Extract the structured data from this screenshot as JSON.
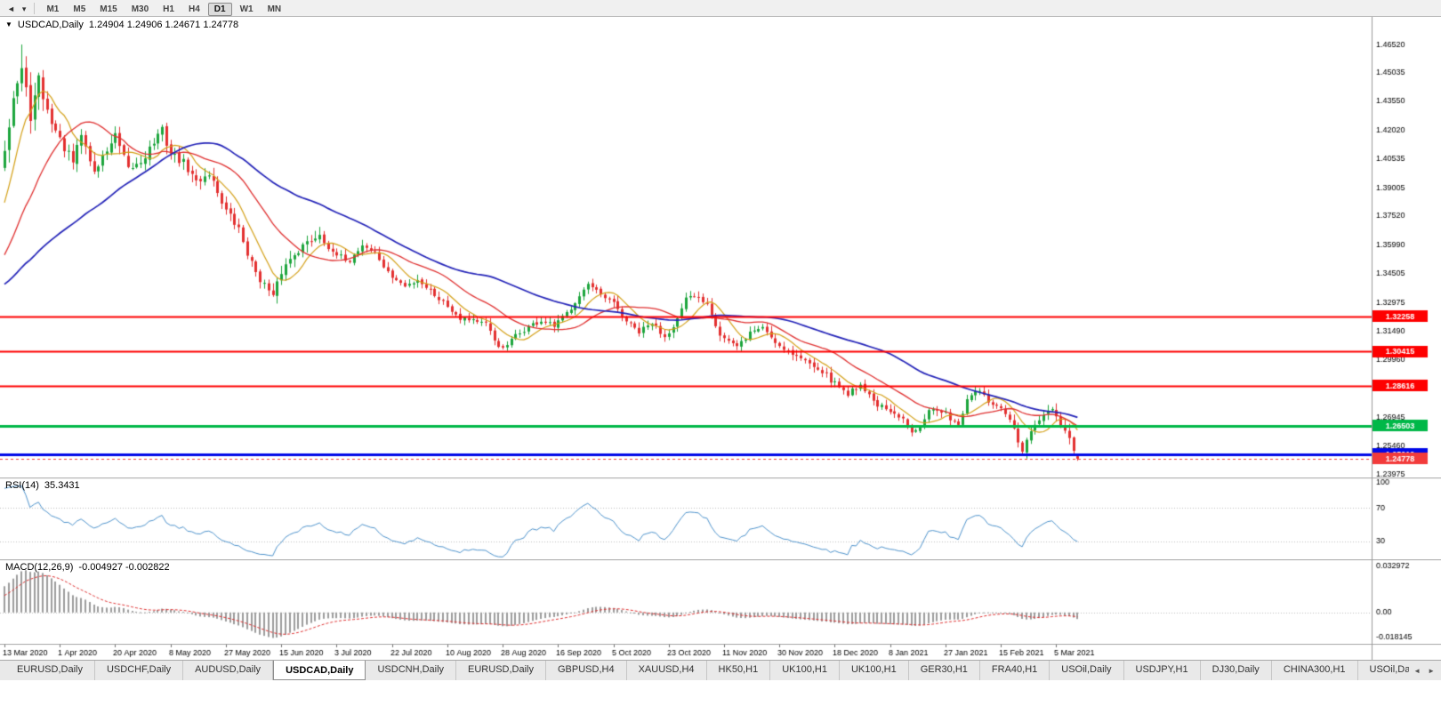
{
  "toolbar": {
    "left_icons": [
      {
        "name": "collapse-left-icon",
        "glyph": "◄"
      },
      {
        "name": "dropdown-caret-icon",
        "glyph": "▾"
      }
    ],
    "periods": [
      {
        "label": "M1"
      },
      {
        "label": "M5"
      },
      {
        "label": "M15"
      },
      {
        "label": "M30"
      },
      {
        "label": "H1"
      },
      {
        "label": "H4"
      },
      {
        "label": "D1"
      },
      {
        "label": "W1"
      },
      {
        "label": "MN"
      }
    ],
    "active_period": "D1"
  },
  "chart_title": {
    "caret": "▼",
    "symbol": "USDCAD,Daily",
    "ohlc": "1.24904 1.24906 1.24671 1.24778"
  },
  "chart_data": {
    "type": "candlestick",
    "symbol": "USDCAD",
    "timeframe": "Daily",
    "y_axis": {
      "top": 1.4797,
      "bottom": 1.2379,
      "labels": [
        "1.46520",
        "1.45035",
        "1.43550",
        "1.42020",
        "1.40535",
        "1.39005",
        "1.37520",
        "1.35990",
        "1.34505",
        "1.32975",
        "1.31490",
        "1.29960",
        "1.28475",
        "1.26945",
        "1.25460",
        "1.23975"
      ]
    },
    "x_axis": {
      "labels": [
        {
          "text": "13 Mar 2020",
          "candle": 0
        },
        {
          "text": "1 Apr 2020",
          "candle": 13
        },
        {
          "text": "20 Apr 2020",
          "candle": 26
        },
        {
          "text": "8 May 2020",
          "candle": 39
        },
        {
          "text": "27 May 2020",
          "candle": 52
        },
        {
          "text": "15 Jun 2020",
          "candle": 65
        },
        {
          "text": "3 Jul 2020",
          "candle": 78
        },
        {
          "text": "22 Jul 2020",
          "candle": 91
        },
        {
          "text": "10 Aug 2020",
          "candle": 104
        },
        {
          "text": "28 Aug 2020",
          "candle": 117
        },
        {
          "text": "16 Sep 2020",
          "candle": 130
        },
        {
          "text": "5 Oct 2020",
          "candle": 143
        },
        {
          "text": "23 Oct 2020",
          "candle": 156
        },
        {
          "text": "11 Nov 2020",
          "candle": 169
        },
        {
          "text": "30 Nov 2020",
          "candle": 182
        },
        {
          "text": "18 Dec 2020",
          "candle": 195
        },
        {
          "text": "8 Jan 2021",
          "candle": 208
        },
        {
          "text": "27 Jan 2021",
          "candle": 221
        },
        {
          "text": "15 Feb 2021",
          "candle": 234
        },
        {
          "text": "5 Mar 2021",
          "candle": 247
        }
      ]
    },
    "candles": {
      "display_count": 253,
      "warmup": 60,
      "seed": 42,
      "noise": 0.0015,
      "up_color": "#1ca53c",
      "down_color": "#e33030",
      "anchors": [
        [
          0,
          1.328
        ],
        [
          20,
          1.332
        ],
        [
          35,
          1.324
        ],
        [
          45,
          1.336
        ],
        [
          52,
          1.348
        ],
        [
          56,
          1.376
        ],
        [
          60,
          1.412
        ],
        [
          62,
          1.438
        ],
        [
          64,
          1.452
        ],
        [
          66,
          1.428
        ],
        [
          68,
          1.446
        ],
        [
          70,
          1.43
        ],
        [
          73,
          1.415
        ],
        [
          76,
          1.403
        ],
        [
          78,
          1.418
        ],
        [
          81,
          1.398
        ],
        [
          84,
          1.41
        ],
        [
          86,
          1.417
        ],
        [
          89,
          1.399
        ],
        [
          92,
          1.404
        ],
        [
          95,
          1.414
        ],
        [
          97,
          1.42
        ],
        [
          99,
          1.408
        ],
        [
          102,
          1.403
        ],
        [
          105,
          1.393
        ],
        [
          108,
          1.398
        ],
        [
          112,
          1.378
        ],
        [
          115,
          1.368
        ],
        [
          118,
          1.35
        ],
        [
          121,
          1.339
        ],
        [
          123,
          1.332
        ],
        [
          125,
          1.346
        ],
        [
          128,
          1.356
        ],
        [
          131,
          1.361
        ],
        [
          134,
          1.366
        ],
        [
          137,
          1.355
        ],
        [
          141,
          1.352
        ],
        [
          144,
          1.36
        ],
        [
          147,
          1.356
        ],
        [
          150,
          1.345
        ],
        [
          154,
          1.338
        ],
        [
          157,
          1.342
        ],
        [
          160,
          1.336
        ],
        [
          163,
          1.33
        ],
        [
          167,
          1.322
        ],
        [
          170,
          1.321
        ],
        [
          173,
          1.318
        ],
        [
          175,
          1.31
        ],
        [
          177,
          1.305
        ],
        [
          180,
          1.312
        ],
        [
          183,
          1.317
        ],
        [
          186,
          1.32
        ],
        [
          189,
          1.317
        ],
        [
          192,
          1.324
        ],
        [
          195,
          1.334
        ],
        [
          197,
          1.339
        ],
        [
          200,
          1.333
        ],
        [
          203,
          1.329
        ],
        [
          206,
          1.32
        ],
        [
          209,
          1.314
        ],
        [
          212,
          1.319
        ],
        [
          215,
          1.312
        ],
        [
          218,
          1.321
        ],
        [
          220,
          1.331
        ],
        [
          222,
          1.333
        ],
        [
          225,
          1.33
        ],
        [
          228,
          1.313
        ],
        [
          232,
          1.306
        ],
        [
          235,
          1.314
        ],
        [
          238,
          1.317
        ],
        [
          241,
          1.309
        ],
        [
          245,
          1.303
        ],
        [
          248,
          1.299
        ],
        [
          251,
          1.296
        ],
        [
          254,
          1.289
        ],
        [
          258,
          1.282
        ],
        [
          261,
          1.287
        ],
        [
          264,
          1.278
        ],
        [
          267,
          1.273
        ],
        [
          271,
          1.268
        ],
        [
          273,
          1.2625
        ],
        [
          275,
          1.2655
        ],
        [
          277,
          1.274
        ],
        [
          281,
          1.271
        ],
        [
          284,
          1.266
        ],
        [
          286,
          1.278
        ],
        [
          288,
          1.284
        ],
        [
          290,
          1.28
        ],
        [
          292,
          1.276
        ],
        [
          294,
          1.273
        ],
        [
          296,
          1.268
        ],
        [
          298,
          1.257
        ],
        [
          299,
          1.2515
        ],
        [
          301,
          1.262
        ],
        [
          304,
          1.2705
        ],
        [
          306,
          1.272
        ],
        [
          308,
          1.266
        ],
        [
          310,
          1.258
        ],
        [
          311,
          1.2505
        ],
        [
          312,
          1.24778
        ]
      ],
      "forced": [
        {
          "i": 64,
          "high": 1.4652
        },
        {
          "i": 299,
          "low": 1.2502
        }
      ],
      "last": {
        "o": 1.24904,
        "h": 1.24906,
        "l": 1.24671,
        "c": 1.24778
      }
    },
    "moving_averages": [
      {
        "period": 8,
        "color": "#d4a017",
        "width": 1.2
      },
      {
        "period": 21,
        "color": "#e03030",
        "width": 1.3
      },
      {
        "period": 50,
        "color": "#2323b8",
        "width": 1.7
      }
    ],
    "levels": [
      {
        "label": "1.32258",
        "value": 1.32258,
        "color": "#fe0000",
        "width": 2
      },
      {
        "label": "1.30415",
        "value": 1.30415,
        "color": "#fe0000",
        "width": 2
      },
      {
        "label": "1.28616",
        "value": 1.28616,
        "color": "#fe0000",
        "width": 2
      },
      {
        "label": "1.26503",
        "value": 1.26503,
        "color": "#00b848",
        "width": 3
      },
      {
        "label": "1.25019",
        "value": 1.25019,
        "color": "#0008e8",
        "width": 3
      }
    ],
    "current_price": {
      "label": "1.24778",
      "value": 1.24778,
      "color": "#f23b3b"
    },
    "rsi": {
      "name": "RSI(14)",
      "value": "35.3431",
      "period": 14,
      "color": "#4f94cd",
      "axis_labels": [
        {
          "text": "100",
          "value": 100
        },
        {
          "text": "70",
          "value": 70
        },
        {
          "text": "30",
          "value": 30
        }
      ],
      "level_lines": [
        70,
        30
      ],
      "range": [
        12,
        103
      ]
    },
    "macd": {
      "name": "MACD(12,26,9)",
      "values": "-0.004927 -0.002822",
      "fast": 12,
      "slow": 26,
      "signal": 9,
      "hist_color": "#9c9c9c",
      "signal_color": "#e03030",
      "axis_labels": [
        {
          "text": "0.032972",
          "value": 0.032972
        },
        {
          "text": "0.00",
          "value": 0
        },
        {
          "text": "-0.018145",
          "value": -0.018145
        }
      ],
      "range": [
        -0.018145,
        0.032972
      ]
    }
  },
  "tabs": {
    "items": [
      {
        "label": "EURUSD,Daily"
      },
      {
        "label": "USDCHF,Daily"
      },
      {
        "label": "AUDUSD,Daily"
      },
      {
        "label": "USDCAD,Daily"
      },
      {
        "label": "USDCNH,Daily"
      },
      {
        "label": "EURUSD,Daily"
      },
      {
        "label": "GBPUSD,H4"
      },
      {
        "label": "XAUUSD,H4"
      },
      {
        "label": "HK50,H1"
      },
      {
        "label": "UK100,H1"
      },
      {
        "label": "UK100,H1"
      },
      {
        "label": "GER30,H1"
      },
      {
        "label": "FRA40,H1"
      },
      {
        "label": "USOil,Daily"
      },
      {
        "label": "USDJPY,H1"
      },
      {
        "label": "DJ30,Daily"
      },
      {
        "label": "CHINA300,H1"
      },
      {
        "label": "USOil,Daily"
      }
    ],
    "active_index": 3,
    "scroll_left_icon": "◄",
    "scroll_right_icon": "►"
  }
}
